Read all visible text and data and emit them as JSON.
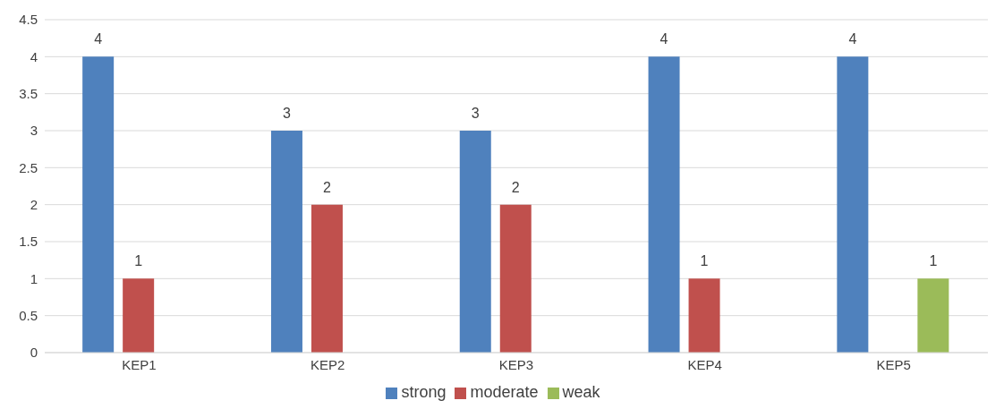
{
  "chart_data": {
    "type": "bar",
    "categories": [
      "KEP1",
      "KEP2",
      "KEP3",
      "KEP4",
      "KEP5"
    ],
    "series": [
      {
        "name": "strong",
        "color": "#4f81bd",
        "values": [
          4,
          3,
          3,
          4,
          4
        ]
      },
      {
        "name": "moderate",
        "color": "#c0504d",
        "values": [
          1,
          2,
          2,
          1,
          null
        ]
      },
      {
        "name": "weak",
        "color": "#9bbb59",
        "values": [
          null,
          null,
          null,
          null,
          1
        ]
      }
    ],
    "ylim": [
      0,
      4.5
    ],
    "yticks": [
      0,
      0.5,
      1,
      1.5,
      2,
      2.5,
      3,
      3.5,
      4,
      4.5
    ],
    "grid": "y",
    "legend": "bottom",
    "data_labels": true
  }
}
